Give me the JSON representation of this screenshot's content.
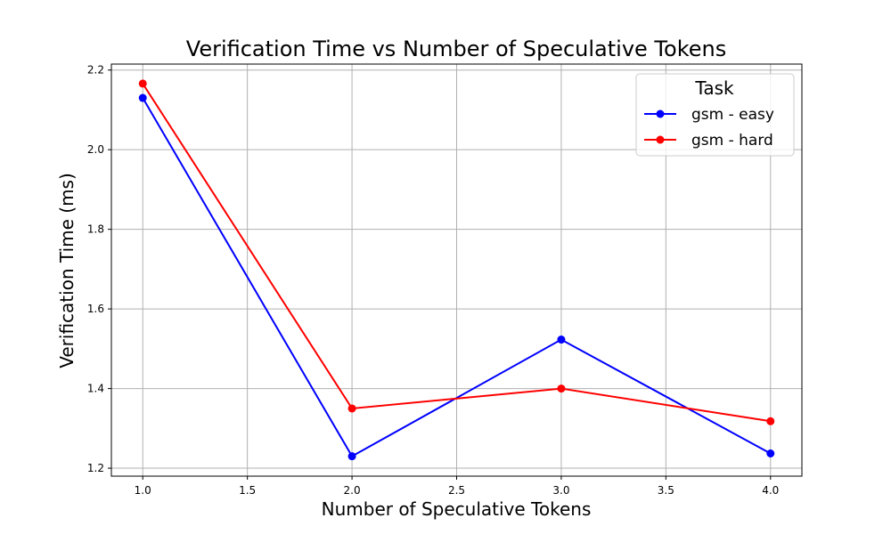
{
  "chart_data": {
    "type": "line",
    "title": "Verification Time vs Number of Speculative Tokens",
    "xlabel": "Number of Speculative Tokens",
    "ylabel": "Verification Time (ms)",
    "x": [
      1.0,
      2.0,
      3.0,
      4.0
    ],
    "xlim": [
      0.85,
      4.15
    ],
    "ylim": [
      1.18,
      2.215
    ],
    "xticks": [
      "1.0",
      "1.5",
      "2.0",
      "2.5",
      "3.0",
      "3.5",
      "4.0"
    ],
    "yticks": [
      "1.2",
      "1.4",
      "1.6",
      "1.8",
      "2.0",
      "2.2"
    ],
    "grid": true,
    "legend": {
      "title": "Task",
      "placement": "top-right"
    },
    "series": [
      {
        "name": "gsm - easy",
        "color": "#0000ff",
        "marker": "circle",
        "values": [
          2.13,
          1.23,
          1.523,
          1.237
        ]
      },
      {
        "name": "gsm - hard",
        "color": "#ff0000",
        "marker": "circle",
        "values": [
          2.166,
          1.35,
          1.4,
          1.318
        ]
      }
    ]
  }
}
